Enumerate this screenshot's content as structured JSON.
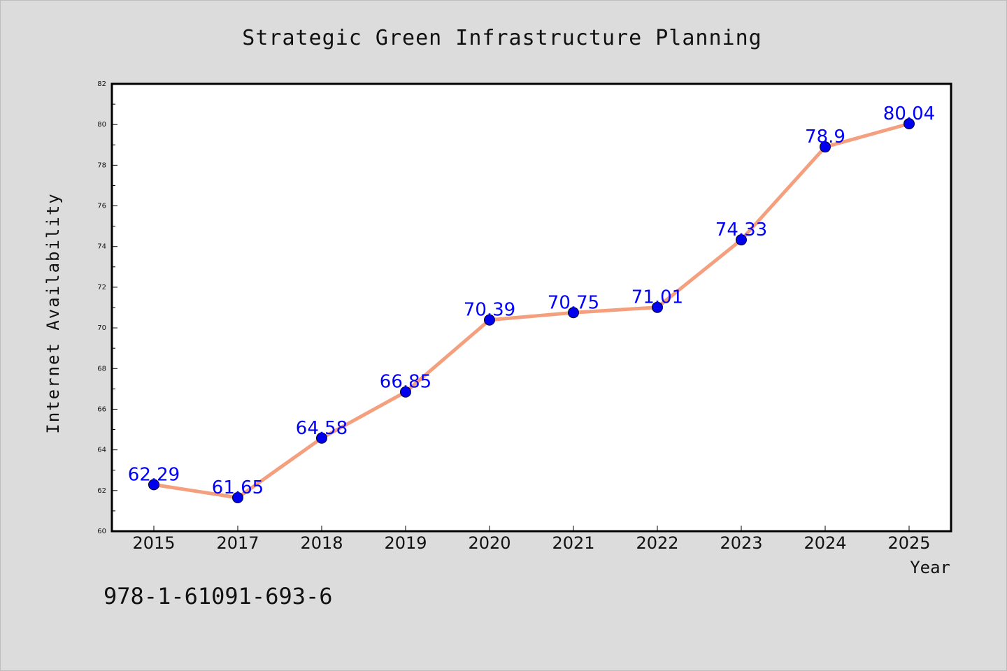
{
  "chart_data": {
    "type": "line",
    "title": "Strategic Green Infrastructure Planning",
    "xlabel": "Year",
    "ylabel": "Internet Availability",
    "categories": [
      "2015",
      "2017",
      "2018",
      "2019",
      "2020",
      "2021",
      "2022",
      "2023",
      "2024",
      "2025"
    ],
    "series": [
      {
        "values": [
          62.29,
          61.65,
          64.58,
          66.85,
          70.39,
          70.75,
          71.01,
          74.33,
          78.9,
          80.04
        ],
        "data_labels": [
          "62.29",
          "61.65",
          "64.58",
          "66.85",
          "70.39",
          "70.75",
          "71.01",
          "74.33",
          "78.9",
          "80.04"
        ]
      }
    ],
    "ylim": [
      60,
      82
    ],
    "yticks": [
      "60",
      "62",
      "64",
      "66",
      "68",
      "70",
      "72",
      "74",
      "76",
      "78",
      "80",
      "82"
    ],
    "grid": false,
    "colors": {
      "line": "#f4a07f",
      "marker": "#0000ee",
      "label": "#0000ff",
      "background": "#dcdcdc",
      "plot_background": "#ffffff"
    }
  },
  "footer_text": "978-1-61091-693-6"
}
